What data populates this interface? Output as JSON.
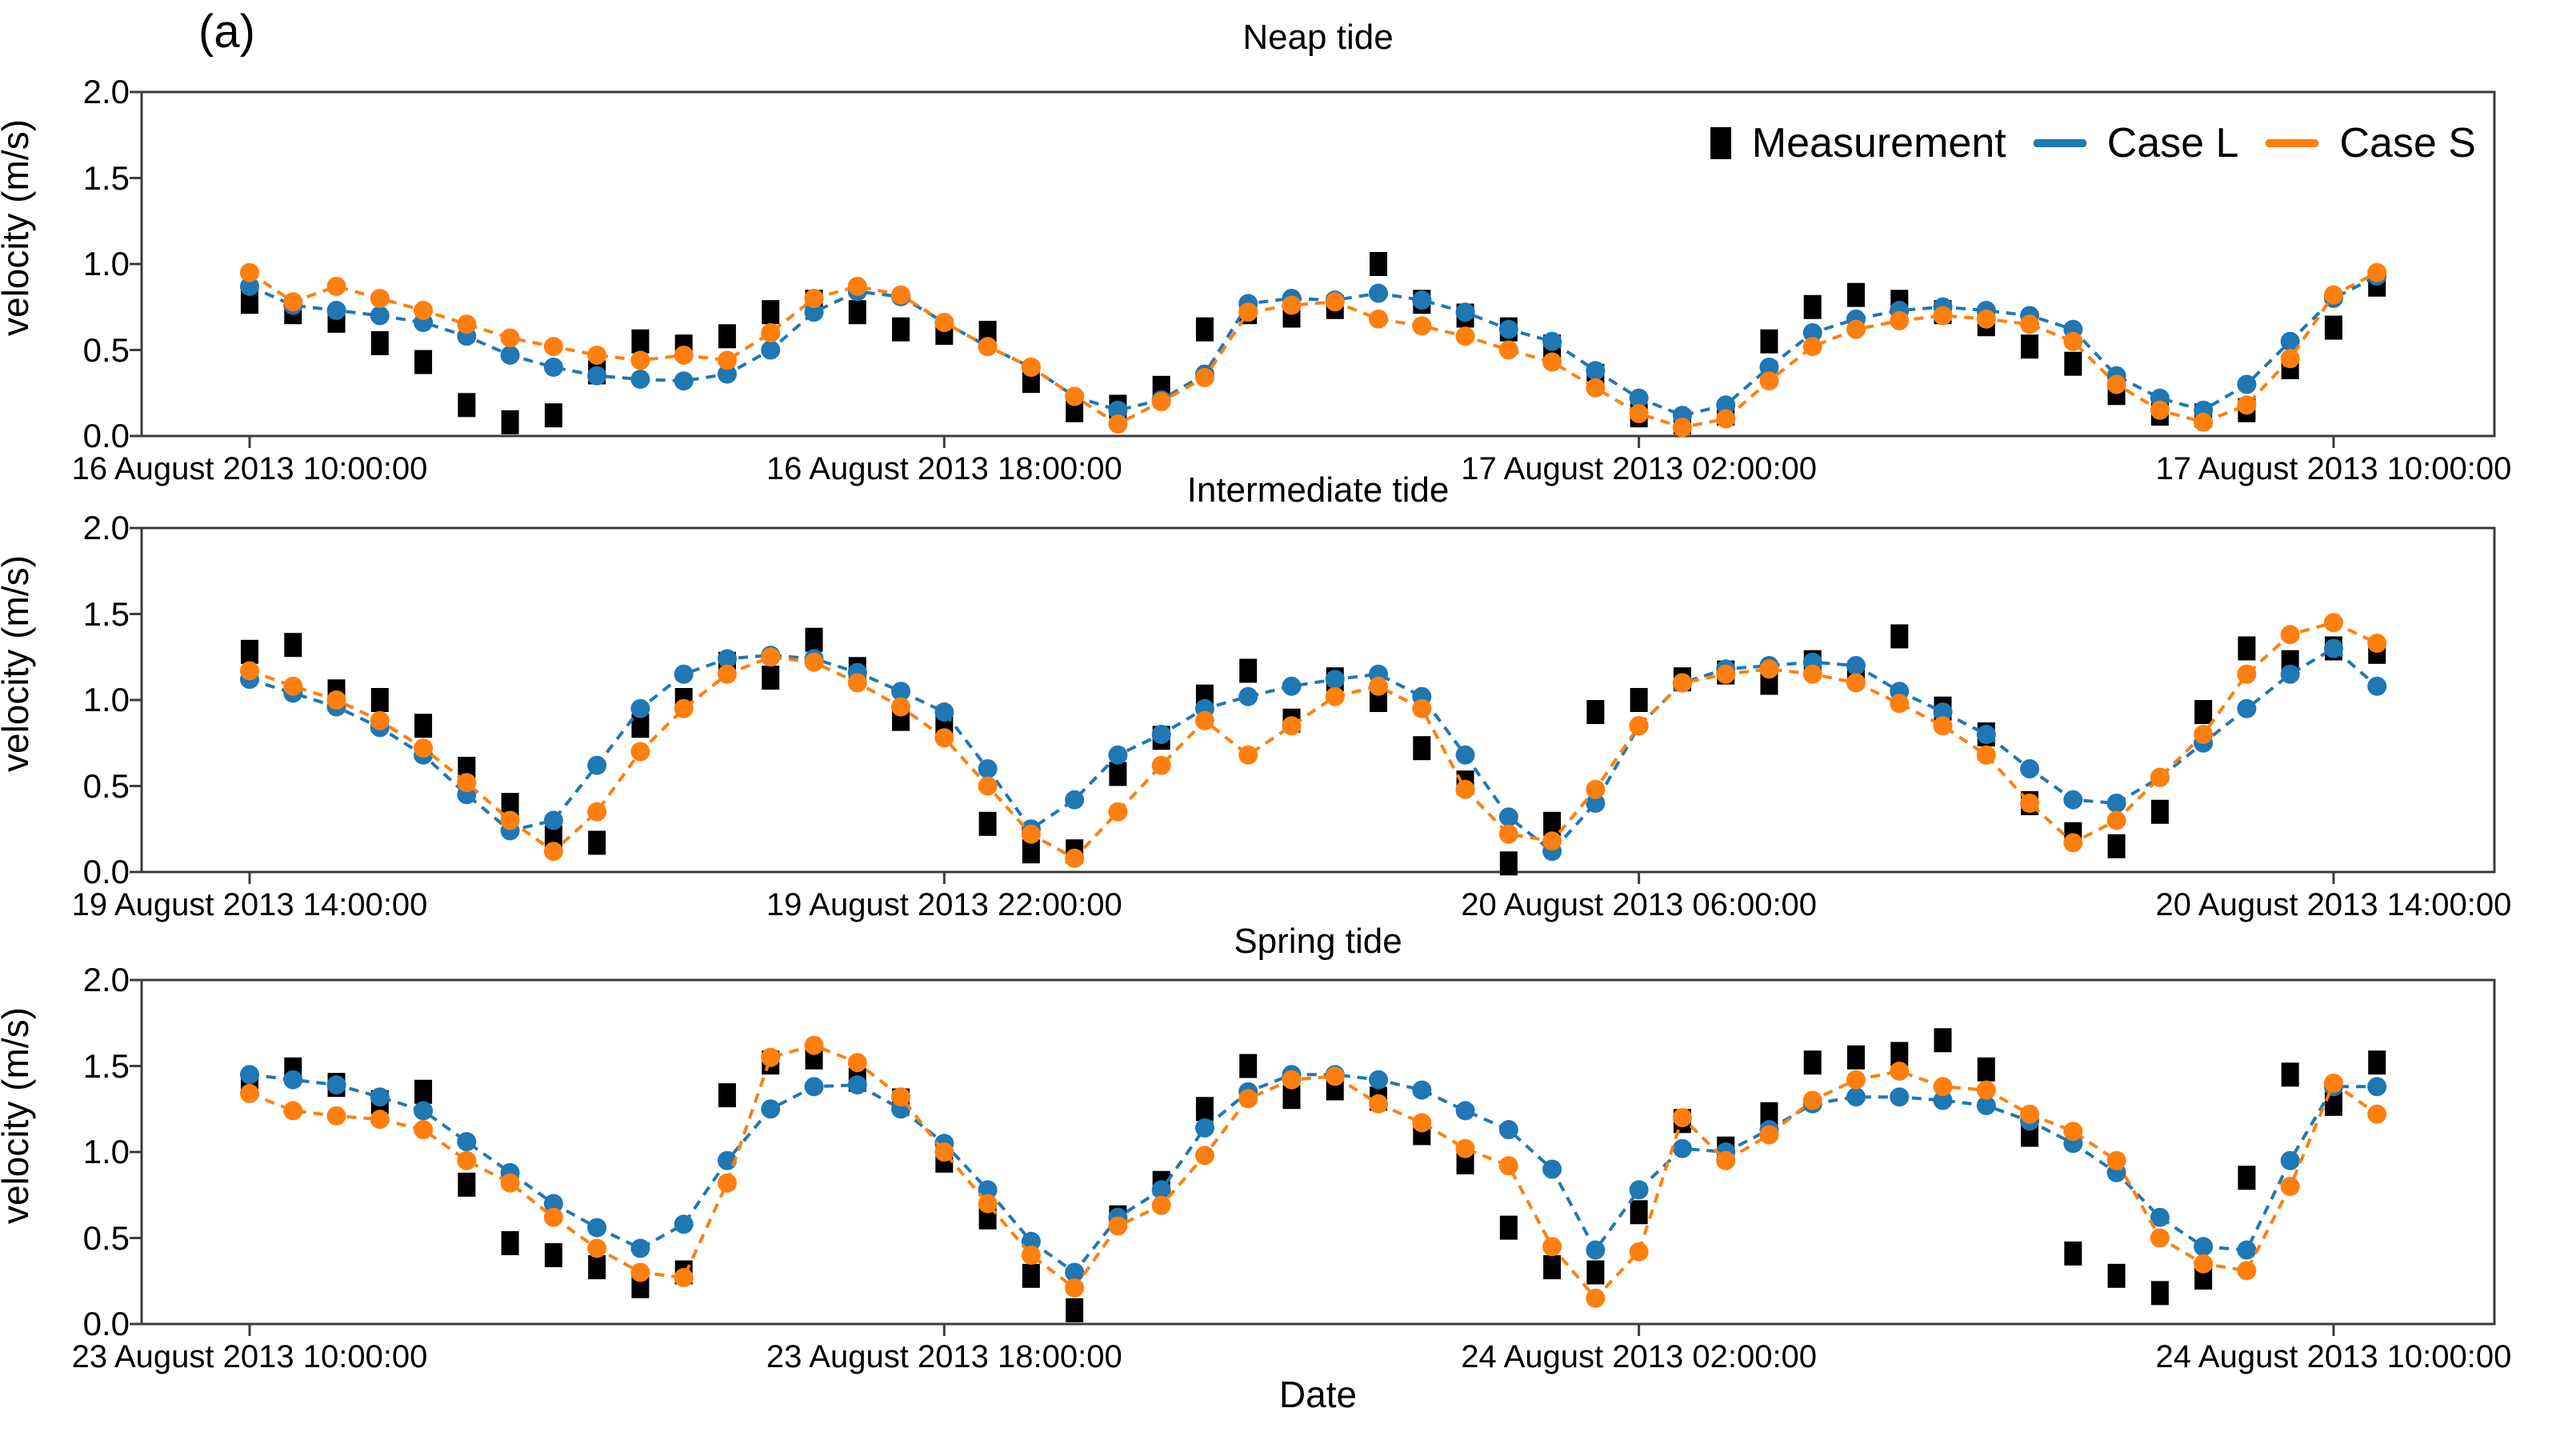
{
  "figure_label": "(a)",
  "axis": {
    "ylabel": "velocity (m/s)",
    "xlabel": "Date",
    "y_ticks": [
      "0.0",
      "0.5",
      "1.0",
      "1.5",
      "2.0"
    ]
  },
  "colors": {
    "measurement": "#000000",
    "case_l": "#1f77b4",
    "case_s": "#ff7f0e",
    "frame": "#3d3d3d"
  },
  "legend": {
    "position": "upper right",
    "items": [
      {
        "label": "Measurement",
        "series": "measurement",
        "marker": "square"
      },
      {
        "label": "Case L",
        "series": "case_l",
        "marker": "line"
      },
      {
        "label": "Case S",
        "series": "case_s",
        "marker": "line"
      }
    ]
  },
  "chart_data": [
    {
      "type": "line",
      "title": "Neap tide",
      "ylabel": "velocity (m/s)",
      "ylim": [
        0,
        2
      ],
      "grid": false,
      "step_hours": 0.5,
      "x_tick_hours": [
        0,
        8,
        16,
        24
      ],
      "x_tick_labels": [
        "16 August 2013 10:00:00",
        "16 August 2013 18:00:00",
        "17 August 2013 02:00:00",
        "17 August 2013 10:00:00"
      ],
      "series": [
        {
          "name": "Measurement",
          "key": "measurement",
          "style": "scatter-square",
          "values": [
            0.78,
            0.72,
            0.67,
            0.54,
            0.43,
            0.18,
            0.08,
            0.12,
            0.37,
            0.55,
            0.52,
            0.58,
            0.72,
            0.78,
            0.72,
            0.62,
            0.6,
            0.6,
            0.32,
            0.15,
            0.17,
            0.28,
            0.62,
            0.72,
            0.7,
            0.75,
            1.0,
            0.78,
            0.7,
            0.62,
            0.52,
            0.35,
            0.12,
            0.08,
            0.13,
            0.55,
            0.75,
            0.82,
            0.78,
            0.72,
            0.65,
            0.52,
            0.42,
            0.25,
            0.13,
            0.12,
            0.15,
            0.4,
            0.63,
            0.88
          ]
        },
        {
          "name": "Case L",
          "key": "case_l",
          "style": "dashed-line-circle",
          "values": [
            0.87,
            0.76,
            0.73,
            0.7,
            0.66,
            0.58,
            0.47,
            0.4,
            0.35,
            0.33,
            0.32,
            0.36,
            0.5,
            0.72,
            0.84,
            0.81,
            0.66,
            0.52,
            0.4,
            0.23,
            0.15,
            0.21,
            0.36,
            0.77,
            0.8,
            0.79,
            0.83,
            0.79,
            0.72,
            0.62,
            0.55,
            0.38,
            0.22,
            0.12,
            0.18,
            0.4,
            0.6,
            0.68,
            0.73,
            0.75,
            0.73,
            0.7,
            0.62,
            0.35,
            0.22,
            0.15,
            0.3,
            0.55,
            0.8,
            0.93
          ]
        },
        {
          "name": "Case S",
          "key": "case_s",
          "style": "dashed-line-circle",
          "values": [
            0.95,
            0.78,
            0.87,
            0.8,
            0.73,
            0.65,
            0.57,
            0.52,
            0.47,
            0.44,
            0.47,
            0.44,
            0.6,
            0.8,
            0.87,
            0.82,
            0.66,
            0.52,
            0.4,
            0.23,
            0.07,
            0.2,
            0.34,
            0.72,
            0.76,
            0.78,
            0.68,
            0.64,
            0.58,
            0.5,
            0.43,
            0.28,
            0.13,
            0.05,
            0.1,
            0.32,
            0.52,
            0.62,
            0.67,
            0.7,
            0.68,
            0.65,
            0.55,
            0.3,
            0.15,
            0.08,
            0.18,
            0.45,
            0.82,
            0.95
          ]
        }
      ]
    },
    {
      "type": "line",
      "title": "Intermediate tide",
      "ylabel": "velocity (m/s)",
      "ylim": [
        0,
        2
      ],
      "grid": false,
      "step_hours": 0.5,
      "x_tick_hours": [
        0,
        8,
        16,
        24
      ],
      "x_tick_labels": [
        "19 August 2013 14:00:00",
        "19 August 2013 22:00:00",
        "20 August 2013 06:00:00",
        "20 August 2013 14:00:00"
      ],
      "series": [
        {
          "name": "Measurement",
          "key": "measurement",
          "style": "scatter-square",
          "values": [
            1.28,
            1.32,
            1.05,
            1.0,
            0.85,
            0.6,
            0.39,
            0.2,
            0.17,
            0.85,
            1.0,
            1.21,
            1.13,
            1.35,
            1.18,
            0.89,
            0.84,
            0.28,
            0.12,
            0.12,
            0.57,
            0.78,
            1.02,
            1.17,
            0.88,
            1.12,
            1.0,
            0.72,
            0.52,
            0.05,
            0.28,
            0.93,
            1.0,
            1.12,
            1.16,
            1.1,
            1.22,
            1.15,
            1.37,
            0.95,
            0.8,
            0.4,
            0.22,
            0.15,
            0.35,
            0.93,
            1.3,
            1.22,
            1.3,
            1.28
          ]
        },
        {
          "name": "Case L",
          "key": "case_l",
          "style": "dashed-line-circle",
          "values": [
            1.12,
            1.04,
            0.96,
            0.84,
            0.68,
            0.45,
            0.24,
            0.3,
            0.62,
            0.95,
            1.15,
            1.24,
            1.26,
            1.24,
            1.16,
            1.05,
            0.93,
            0.6,
            0.25,
            0.42,
            0.68,
            0.8,
            0.95,
            1.02,
            1.08,
            1.12,
            1.15,
            1.02,
            0.68,
            0.32,
            0.12,
            0.4,
            0.85,
            1.1,
            1.18,
            1.2,
            1.22,
            1.2,
            1.05,
            0.93,
            0.8,
            0.6,
            0.42,
            0.4,
            0.55,
            0.75,
            0.95,
            1.15,
            1.3,
            1.08
          ]
        },
        {
          "name": "Case S",
          "key": "case_s",
          "style": "dashed-line-circle",
          "values": [
            1.17,
            1.08,
            1.0,
            0.88,
            0.72,
            0.52,
            0.3,
            0.12,
            0.35,
            0.7,
            0.95,
            1.15,
            1.25,
            1.22,
            1.1,
            0.96,
            0.78,
            0.5,
            0.22,
            0.08,
            0.35,
            0.62,
            0.88,
            0.68,
            0.85,
            1.02,
            1.08,
            0.95,
            0.48,
            0.22,
            0.18,
            0.48,
            0.85,
            1.1,
            1.15,
            1.18,
            1.15,
            1.1,
            0.98,
            0.85,
            0.68,
            0.4,
            0.17,
            0.3,
            0.55,
            0.8,
            1.15,
            1.38,
            1.45,
            1.33
          ]
        }
      ]
    },
    {
      "type": "line",
      "title": "Spring tide",
      "ylabel": "velocity (m/s)",
      "ylim": [
        0,
        2
      ],
      "grid": false,
      "step_hours": 0.5,
      "x_tick_hours": [
        0,
        8,
        16,
        24
      ],
      "x_tick_labels": [
        "23 August 2013 10:00:00",
        "23 August 2013 18:00:00",
        "24 August 2013 02:00:00",
        "24 August 2013 10:00:00"
      ],
      "series": [
        {
          "name": "Measurement",
          "key": "measurement",
          "style": "scatter-square",
          "values": [
            1.4,
            1.48,
            1.39,
            1.29,
            1.35,
            0.81,
            0.47,
            0.4,
            0.33,
            0.22,
            0.3,
            1.33,
            1.52,
            1.55,
            1.42,
            1.3,
            0.95,
            0.62,
            0.28,
            0.08,
            0.62,
            0.82,
            1.25,
            1.5,
            1.32,
            1.37,
            1.31,
            1.11,
            0.94,
            0.56,
            0.33,
            0.3,
            0.65,
            1.18,
            1.02,
            1.22,
            1.52,
            1.55,
            1.57,
            1.65,
            1.48,
            1.1,
            0.41,
            0.28,
            0.18,
            0.27,
            0.85,
            1.45,
            1.28,
            1.52
          ]
        },
        {
          "name": "Case L",
          "key": "case_l",
          "style": "dashed-line-circle",
          "values": [
            1.45,
            1.42,
            1.39,
            1.32,
            1.24,
            1.06,
            0.88,
            0.7,
            0.56,
            0.44,
            0.58,
            0.95,
            1.25,
            1.38,
            1.39,
            1.25,
            1.05,
            0.78,
            0.48,
            0.3,
            0.62,
            0.78,
            1.14,
            1.35,
            1.45,
            1.45,
            1.42,
            1.36,
            1.24,
            1.13,
            0.9,
            0.43,
            0.78,
            1.02,
            1.0,
            1.13,
            1.28,
            1.32,
            1.32,
            1.3,
            1.27,
            1.18,
            1.05,
            0.88,
            0.62,
            0.45,
            0.43,
            0.95,
            1.38,
            1.38
          ]
        },
        {
          "name": "Case S",
          "key": "case_s",
          "style": "dashed-line-circle",
          "values": [
            1.34,
            1.24,
            1.21,
            1.19,
            1.13,
            0.95,
            0.82,
            0.62,
            0.44,
            0.3,
            0.27,
            0.82,
            1.55,
            1.62,
            1.52,
            1.32,
            1.0,
            0.7,
            0.4,
            0.21,
            0.57,
            0.69,
            0.98,
            1.31,
            1.42,
            1.44,
            1.28,
            1.17,
            1.02,
            0.92,
            0.45,
            0.15,
            0.42,
            1.2,
            0.95,
            1.1,
            1.3,
            1.42,
            1.47,
            1.38,
            1.36,
            1.22,
            1.12,
            0.95,
            0.5,
            0.35,
            0.31,
            0.8,
            1.4,
            1.22
          ]
        }
      ]
    }
  ]
}
